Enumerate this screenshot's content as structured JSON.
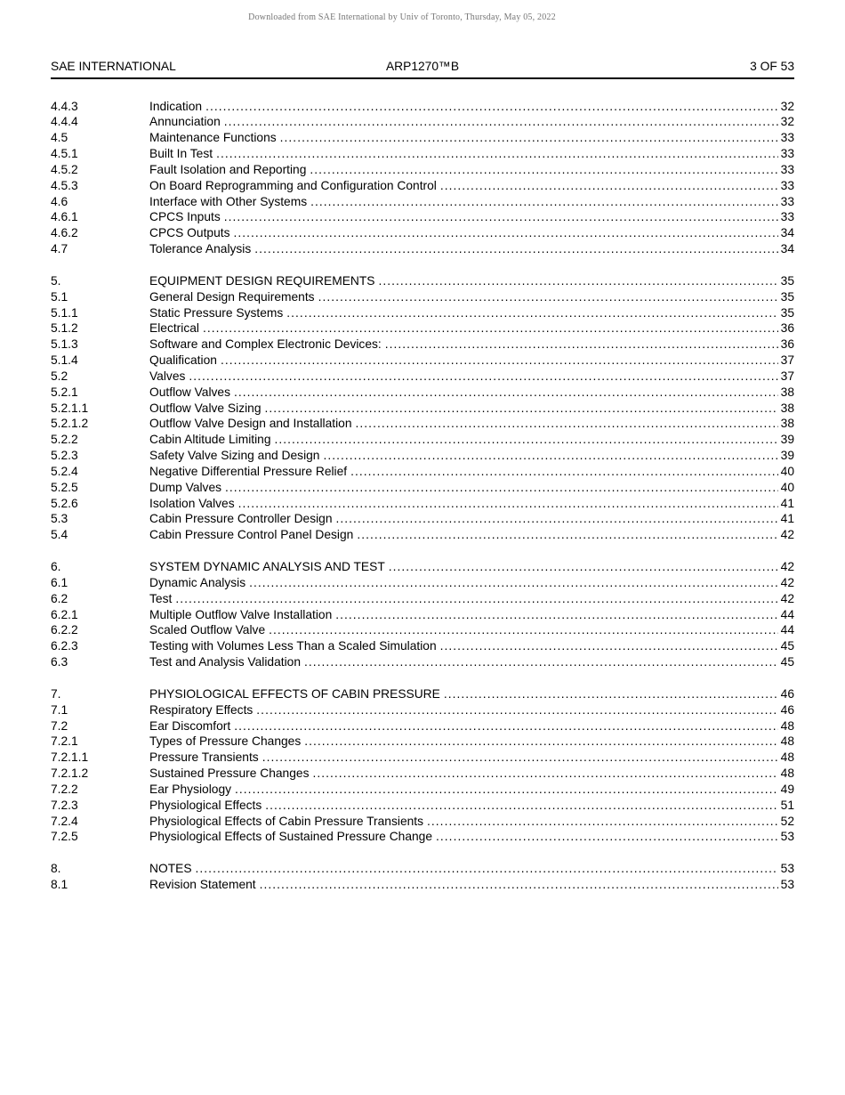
{
  "watermark": "Downloaded from SAE International by Univ of Toronto, Thursday, May 05, 2022",
  "header": {
    "left": "SAE INTERNATIONAL",
    "center": "ARP1270™B",
    "right": "3 OF 53"
  },
  "toc": {
    "groups": [
      {
        "entries": [
          {
            "num": "4.4.3",
            "title": "Indication",
            "page": "32"
          },
          {
            "num": "4.4.4",
            "title": "Annunciation",
            "page": "32"
          },
          {
            "num": "4.5",
            "title": "Maintenance Functions",
            "page": "33"
          },
          {
            "num": "4.5.1",
            "title": "Built In Test",
            "page": "33"
          },
          {
            "num": "4.5.2",
            "title": "Fault Isolation and Reporting",
            "page": "33"
          },
          {
            "num": "4.5.3",
            "title": "On Board Reprogramming and Configuration Control",
            "page": "33"
          },
          {
            "num": "4.6",
            "title": "Interface with Other Systems",
            "page": "33"
          },
          {
            "num": "4.6.1",
            "title": "CPCS Inputs",
            "page": "33"
          },
          {
            "num": "4.6.2",
            "title": "CPCS Outputs",
            "page": "34"
          },
          {
            "num": "4.7",
            "title": "Tolerance Analysis",
            "page": "34"
          }
        ]
      },
      {
        "entries": [
          {
            "num": "5.",
            "title": "EQUIPMENT DESIGN REQUIREMENTS",
            "page": "35"
          },
          {
            "num": "5.1",
            "title": "General Design Requirements",
            "page": "35"
          },
          {
            "num": "5.1.1",
            "title": "Static Pressure Systems",
            "page": "35"
          },
          {
            "num": "5.1.2",
            "title": "Electrical",
            "page": "36"
          },
          {
            "num": "5.1.3",
            "title": "Software and Complex Electronic Devices:",
            "page": "36"
          },
          {
            "num": "5.1.4",
            "title": "Qualification",
            "page": "37"
          },
          {
            "num": "5.2",
            "title": "Valves",
            "page": "37"
          },
          {
            "num": "5.2.1",
            "title": "Outflow Valves",
            "page": "38"
          },
          {
            "num": "5.2.1.1",
            "title": "Outflow Valve Sizing",
            "page": "38"
          },
          {
            "num": "5.2.1.2",
            "title": "Outflow Valve Design and Installation",
            "page": "38"
          },
          {
            "num": "5.2.2",
            "title": "Cabin Altitude Limiting",
            "page": "39"
          },
          {
            "num": "5.2.3",
            "title": "Safety Valve Sizing and Design",
            "page": "39"
          },
          {
            "num": "5.2.4",
            "title": "Negative Differential Pressure Relief",
            "page": "40"
          },
          {
            "num": "5.2.5",
            "title": "Dump Valves",
            "page": "40"
          },
          {
            "num": "5.2.6",
            "title": "Isolation Valves",
            "page": "41"
          },
          {
            "num": "5.3",
            "title": "Cabin Pressure Controller Design",
            "page": "41"
          },
          {
            "num": "5.4",
            "title": "Cabin Pressure Control Panel Design",
            "page": "42"
          }
        ]
      },
      {
        "entries": [
          {
            "num": "6.",
            "title": "SYSTEM DYNAMIC ANALYSIS AND TEST",
            "page": "42"
          },
          {
            "num": "6.1",
            "title": "Dynamic Analysis",
            "page": "42"
          },
          {
            "num": "6.2",
            "title": "Test",
            "page": "42"
          },
          {
            "num": "6.2.1",
            "title": "Multiple Outflow Valve Installation",
            "page": "44"
          },
          {
            "num": "6.2.2",
            "title": "Scaled Outflow Valve",
            "page": "44"
          },
          {
            "num": "6.2.3",
            "title": "Testing with Volumes Less Than a Scaled Simulation",
            "page": "45"
          },
          {
            "num": "6.3",
            "title": "Test and Analysis Validation",
            "page": "45"
          }
        ]
      },
      {
        "entries": [
          {
            "num": "7.",
            "title": "PHYSIOLOGICAL EFFECTS OF CABIN PRESSURE",
            "page": "46"
          },
          {
            "num": "7.1",
            "title": "Respiratory Effects",
            "page": "46"
          },
          {
            "num": "7.2",
            "title": "Ear Discomfort",
            "page": "48"
          },
          {
            "num": "7.2.1",
            "title": "Types of Pressure Changes",
            "page": "48"
          },
          {
            "num": "7.2.1.1",
            "title": "Pressure Transients",
            "page": "48"
          },
          {
            "num": "7.2.1.2",
            "title": "Sustained Pressure Changes",
            "page": "48"
          },
          {
            "num": "7.2.2",
            "title": "Ear Physiology",
            "page": "49"
          },
          {
            "num": "7.2.3",
            "title": "Physiological Effects",
            "page": "51"
          },
          {
            "num": "7.2.4",
            "title": "Physiological Effects of Cabin Pressure Transients",
            "page": "52"
          },
          {
            "num": "7.2.5",
            "title": "Physiological Effects of Sustained Pressure Change",
            "page": "53"
          }
        ]
      },
      {
        "entries": [
          {
            "num": "8.",
            "title": "NOTES",
            "page": "53"
          },
          {
            "num": "8.1",
            "title": "Revision Statement",
            "page": "53"
          }
        ]
      }
    ]
  }
}
